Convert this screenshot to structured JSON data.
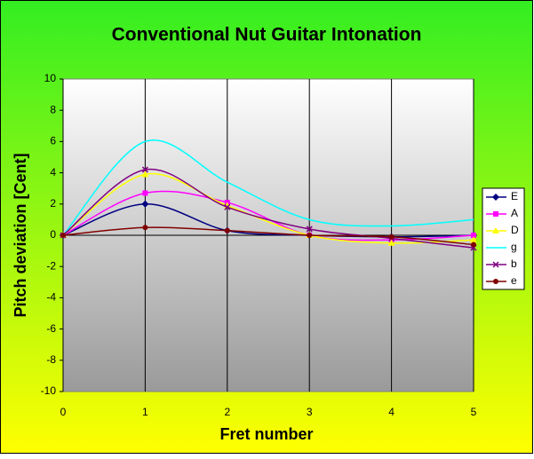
{
  "chart_data": {
    "type": "line",
    "title": "Conventional Nut Guitar Intonation",
    "x_label": "Fret number",
    "y_label": "Pitch deviation [Cent]",
    "x": [
      0,
      1,
      2,
      3,
      4,
      5
    ],
    "xlim": [
      0,
      5
    ],
    "xticks": [
      0,
      1,
      2,
      3,
      4,
      5
    ],
    "ylim": [
      -10,
      10
    ],
    "yticks": [
      -10,
      -8,
      -6,
      -4,
      -2,
      0,
      2,
      4,
      6,
      8,
      10
    ],
    "grid": "vertical",
    "smooth": true,
    "legend": "right",
    "series": [
      {
        "name": "E",
        "color": "#000080",
        "marker": "diamond",
        "values": [
          0,
          2,
          0.3,
          0,
          -0.1,
          0
        ]
      },
      {
        "name": "A",
        "color": "#ff00ff",
        "marker": "square",
        "values": [
          0,
          2.7,
          2.1,
          0,
          -0.3,
          0
        ]
      },
      {
        "name": "D",
        "color": "#ffff00",
        "marker": "triangle",
        "values": [
          0,
          3.9,
          1.9,
          0,
          -0.5,
          -0.3
        ]
      },
      {
        "name": "g",
        "color": "#00ffff",
        "marker": "none",
        "values": [
          0,
          6,
          3.4,
          1,
          0.6,
          1
        ]
      },
      {
        "name": "b",
        "color": "#800080",
        "marker": "cross",
        "values": [
          0,
          4.2,
          1.8,
          0.4,
          -0.2,
          -0.8
        ]
      },
      {
        "name": "e",
        "color": "#800000",
        "marker": "circle",
        "values": [
          0,
          0.5,
          0.3,
          0,
          -0.1,
          -0.6
        ]
      }
    ]
  }
}
